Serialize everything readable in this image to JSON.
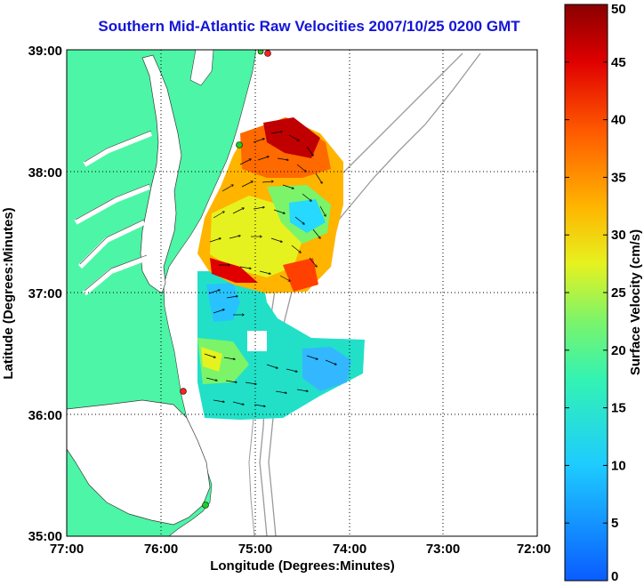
{
  "title": "Southern Mid-Atlantic Raw Velocities 2007/10/25 0200 GMT",
  "xlabel": "Longitude (Degrees:Minutes)",
  "ylabel": "Latitude (Degrees:Minutes)",
  "xticks": [
    "77:00",
    "76:00",
    "75:00",
    "74:00",
    "73:00",
    "72:00"
  ],
  "yticks": [
    "39:00",
    "38:00",
    "37:00",
    "36:00",
    "35:00"
  ],
  "colorbar": {
    "label": "Surface Velocity (cm/s)",
    "ticks": [
      "0",
      "5",
      "10",
      "15",
      "20",
      "25",
      "30",
      "35",
      "40",
      "45",
      "50"
    ],
    "min": 0,
    "max": 50
  },
  "colors": {
    "land": "#4df5a6",
    "title": "#1414d8",
    "bathymetry": "#9a9a9a",
    "station": "#ff2020",
    "station_alt": "#22cc22"
  }
}
